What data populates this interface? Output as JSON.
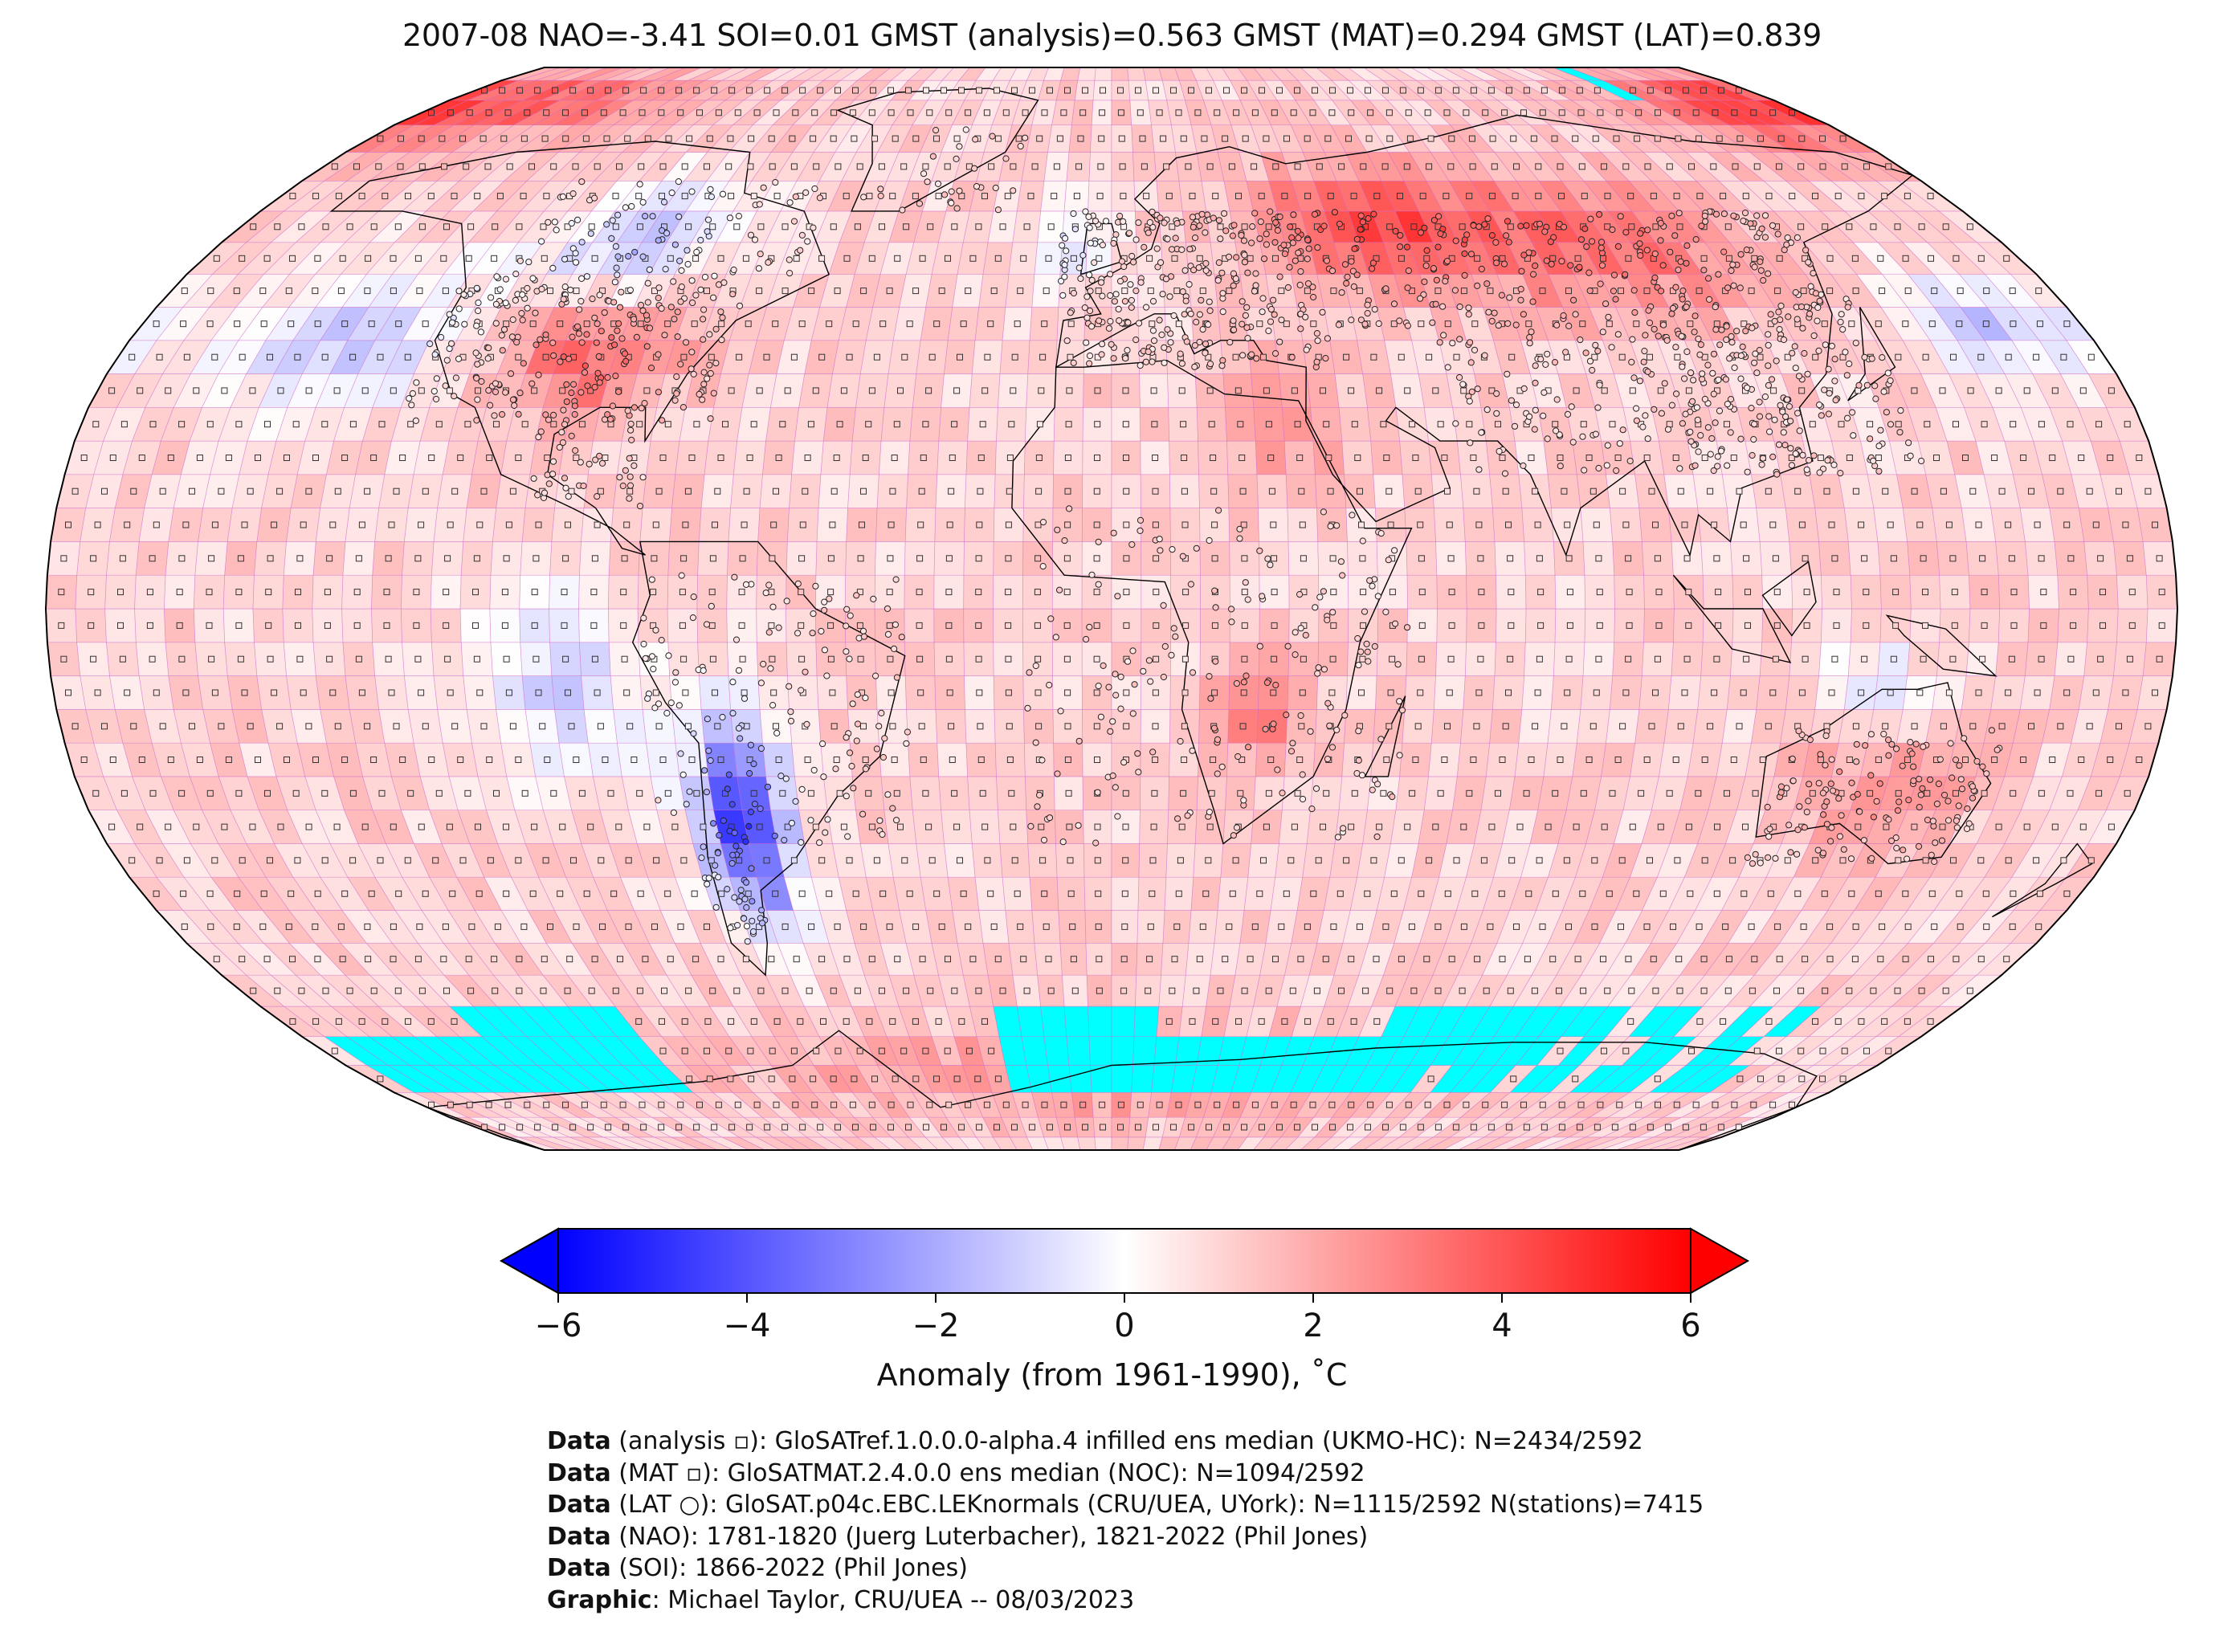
{
  "title": "2007-08 NAO=-3.41 SOI=0.01 GMST (analysis)=0.563 GMST (MAT)=0.294 GMST (LAT)=0.839",
  "colors": {
    "cold_max": "#0000ff",
    "neutral": "#ffffff",
    "warm_max": "#ff0000",
    "missing": "#00ffff",
    "grid_line": "#cc66cc"
  },
  "colorbar": {
    "vmin": -6,
    "vmax": 6,
    "extend": "both",
    "ticks": [
      "−6",
      "−4",
      "−2",
      "0",
      "2",
      "4",
      "6"
    ],
    "label": "Anomaly (from 1961-1990), ˚C"
  },
  "map": {
    "projection": "Robinson",
    "grid_resolution_deg": 5,
    "cells": "5°x5° temperature anomaly grid",
    "markers": {
      "analysis": "square",
      "mat": "small square",
      "lat": "circle"
    }
  },
  "credits": [
    {
      "key": "Data",
      "text": " (analysis ▫): GloSATref.1.0.0.0-alpha.4 infilled ens median (UKMO-HC): N=2434/2592"
    },
    {
      "key": "Data",
      "text": " (MAT ▫): GloSATMAT.2.4.0.0 ens median (NOC): N=1094/2592"
    },
    {
      "key": "Data",
      "text": " (LAT ○): GloSAT.p04c.EBC.LEKnormals (CRU/UEA, UYork): N=1115/2592 N(stations)=7415"
    },
    {
      "key": "Data",
      "text": " (NAO): 1781-1820 (Juerg Luterbacher), 1821-2022 (Phil Jones)"
    },
    {
      "key": "Data",
      "text": " (SOI): 1866-2022 (Phil Jones)"
    },
    {
      "key": "Graphic",
      "text": ": Michael Taylor, CRU/UEA -- 08/03/2023"
    }
  ]
}
